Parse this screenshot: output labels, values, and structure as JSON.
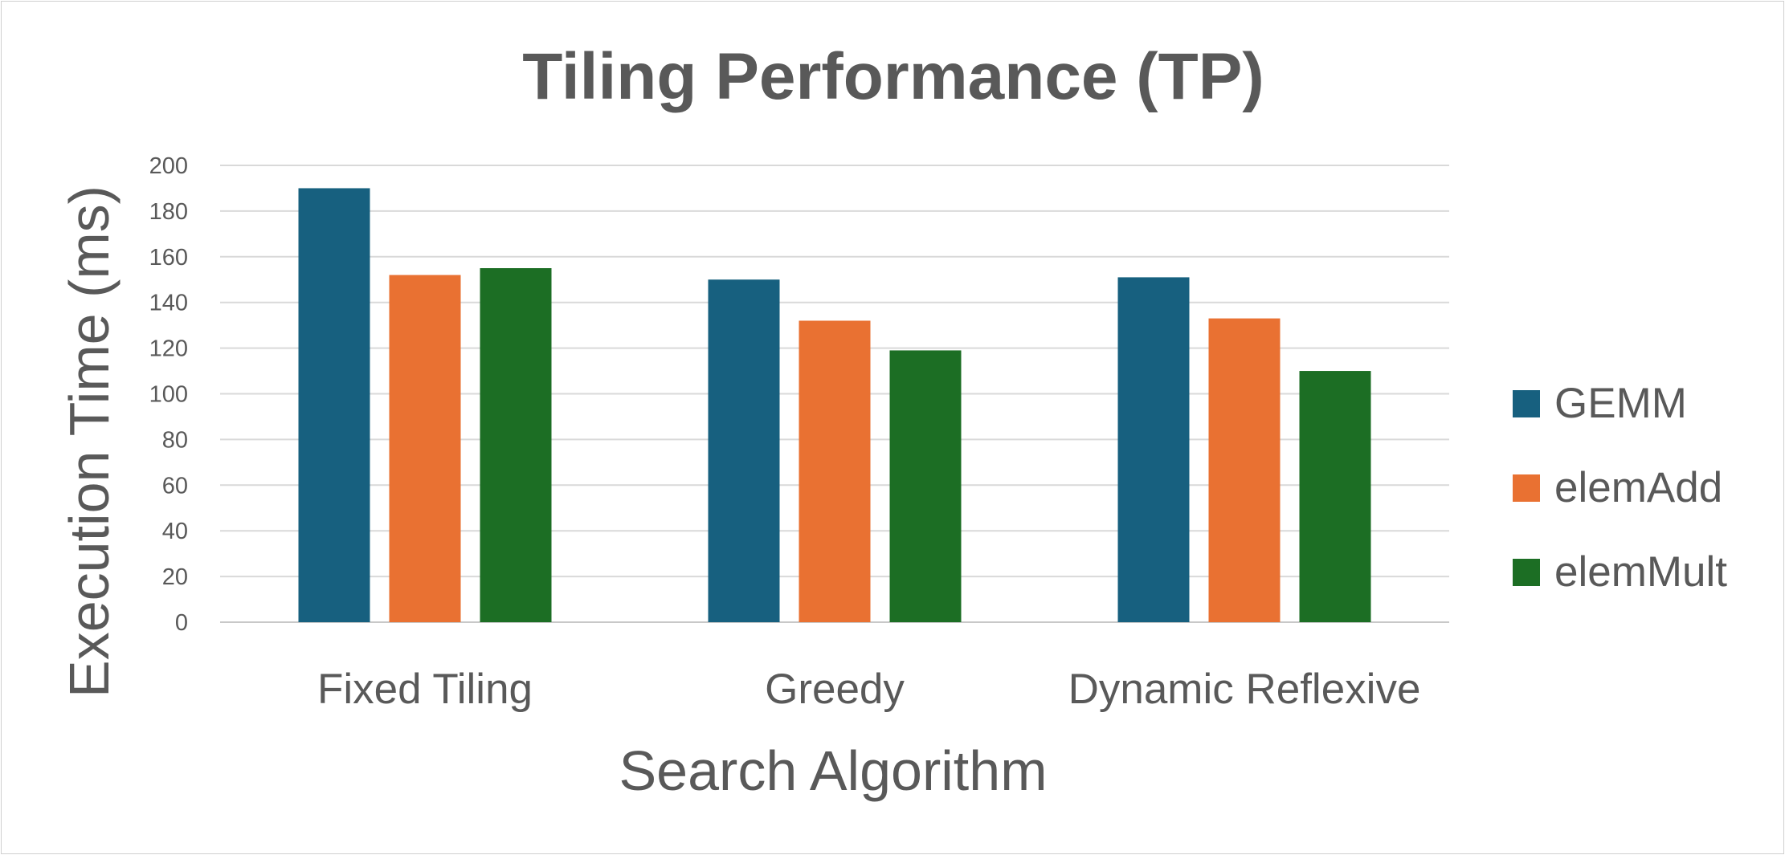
{
  "chart_data": {
    "type": "bar",
    "title": "Tiling Performance (TP)",
    "xlabel": "Search Algorithm",
    "ylabel": "Execution Time (ms)",
    "categories": [
      "Fixed Tiling",
      "Greedy",
      "Dynamic Reflexive"
    ],
    "series": [
      {
        "name": "GEMM",
        "color": "#17607f",
        "values": [
          190,
          150,
          151
        ]
      },
      {
        "name": "elemAdd",
        "color": "#e97132",
        "values": [
          152,
          132,
          133
        ]
      },
      {
        "name": "elemMult",
        "color": "#1c6e24",
        "values": [
          155,
          119,
          110
        ]
      }
    ],
    "ylim": [
      0,
      200
    ],
    "yticks": [
      0,
      20,
      40,
      60,
      80,
      100,
      120,
      140,
      160,
      180,
      200
    ],
    "grid": true,
    "legend_position": "right"
  }
}
